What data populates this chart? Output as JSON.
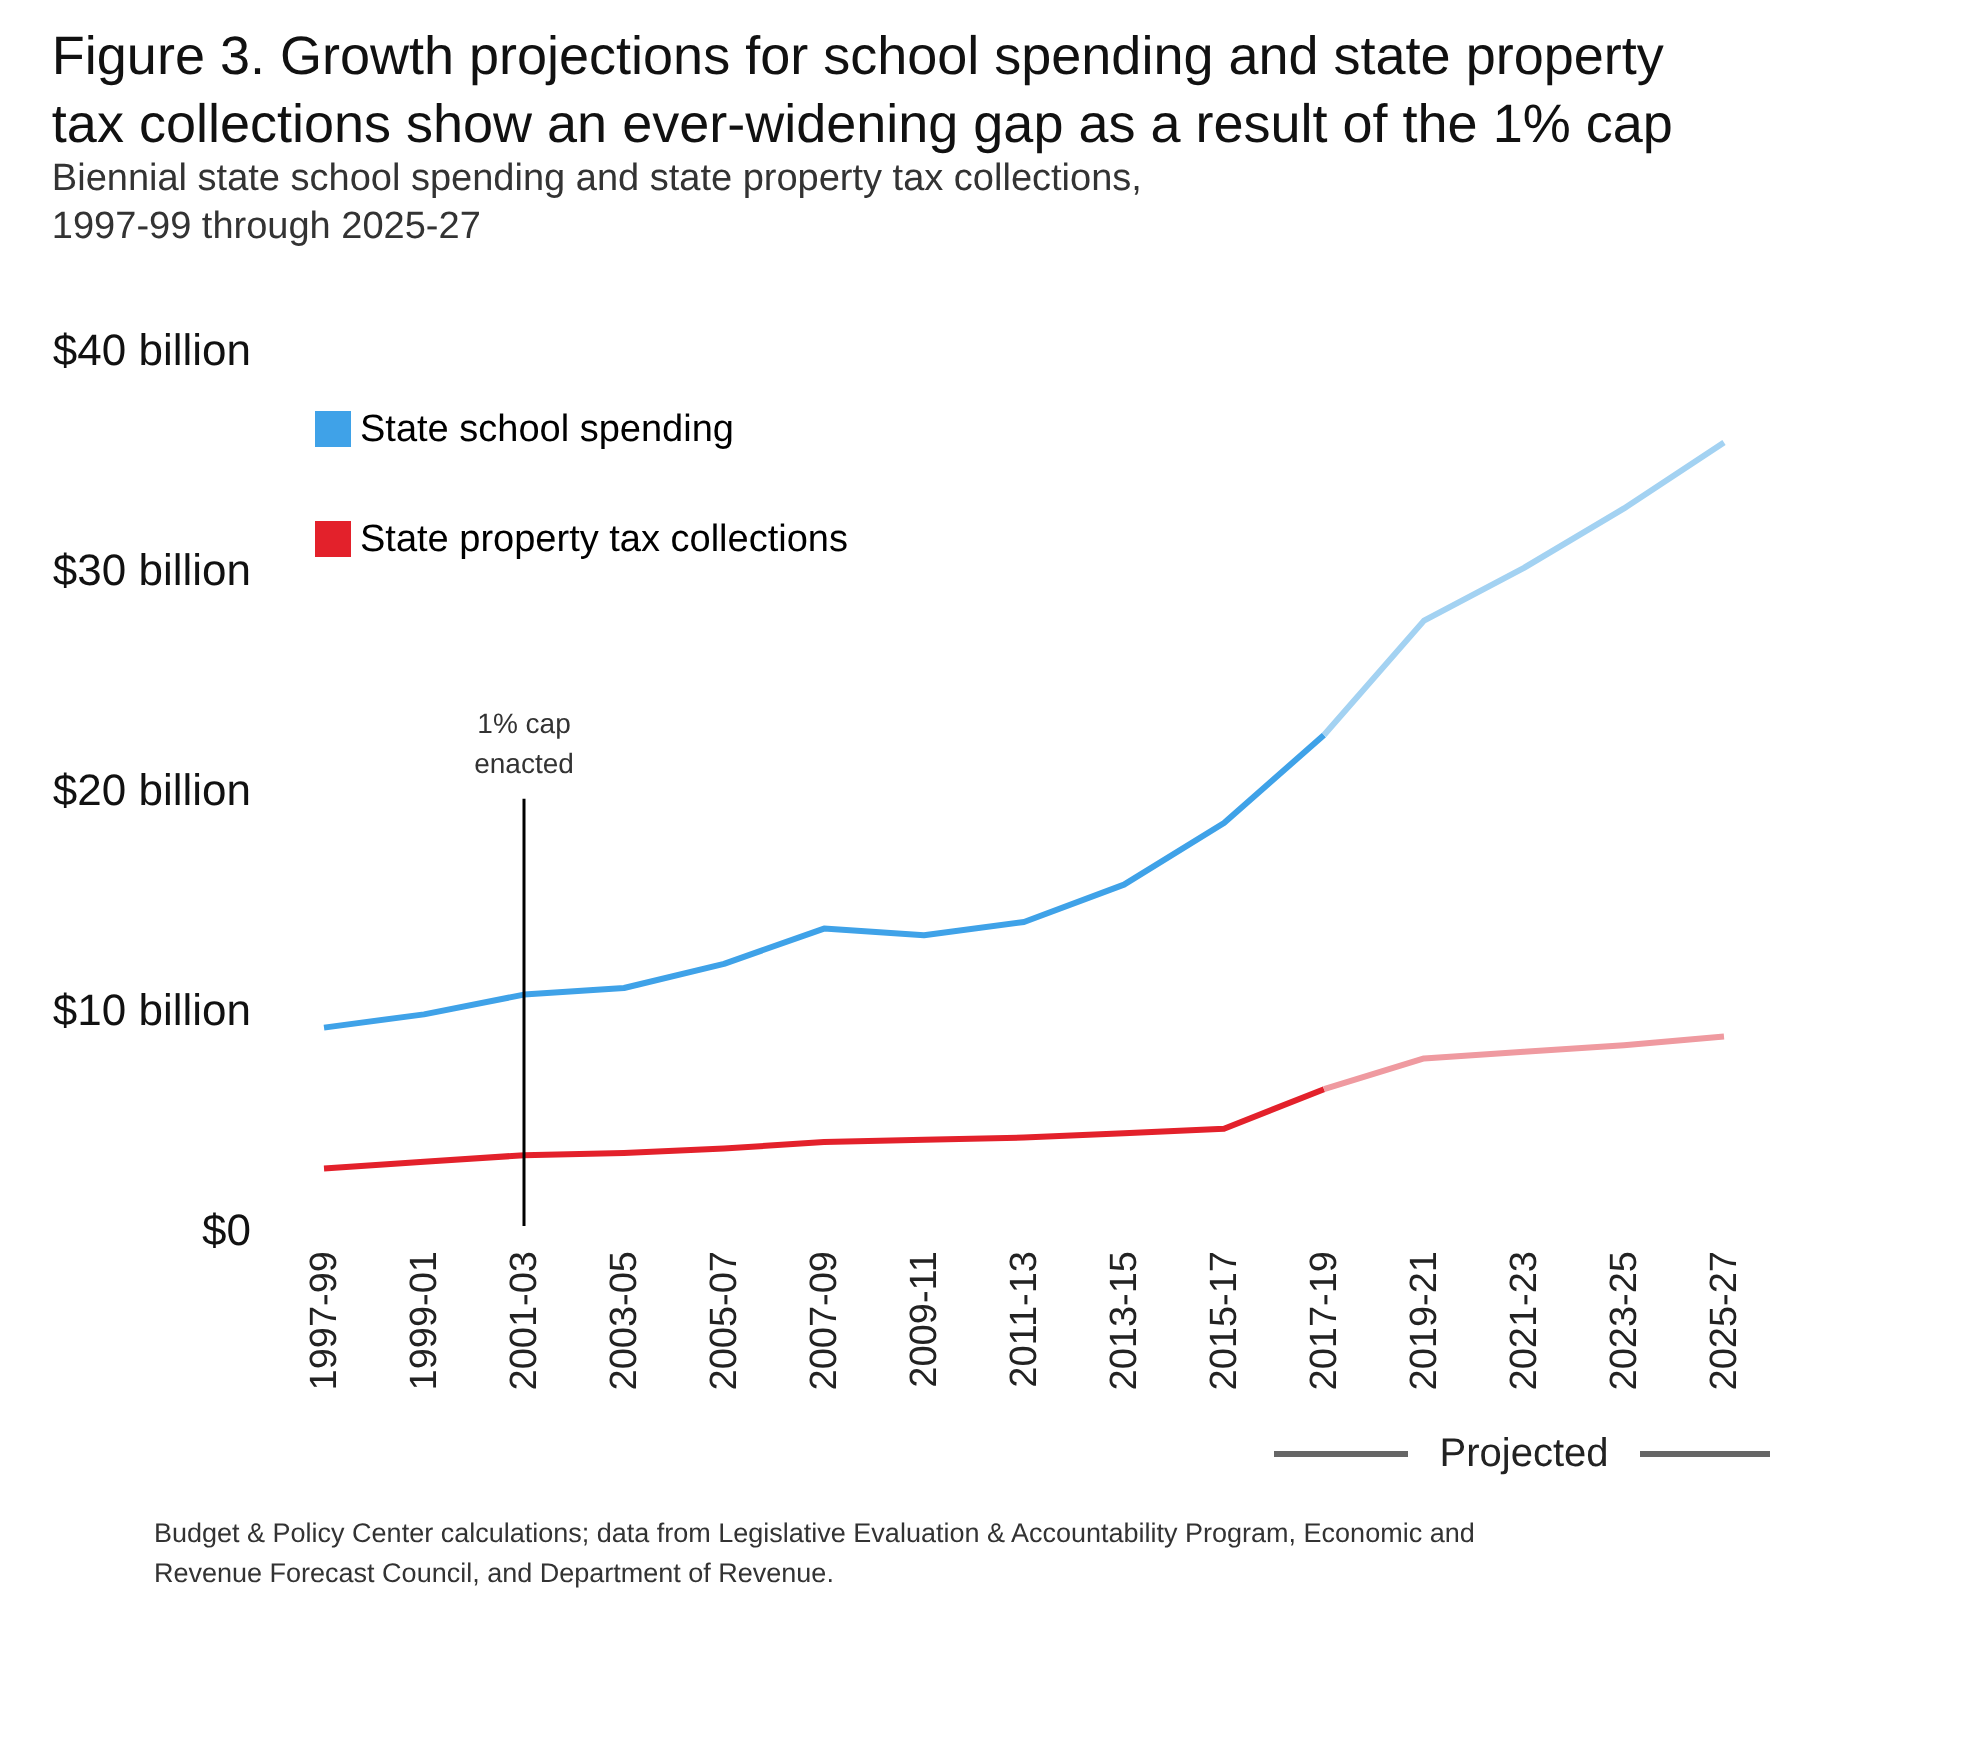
{
  "chart_data": {
    "type": "line",
    "title": "Figure 3. Growth projections for school spending and state property tax collections show an ever-widening gap as a result of the 1% cap",
    "subtitle": "Biennial state school spending and state property tax collections, 1997-99 through 2025-27",
    "categories": [
      "1997-99",
      "1999-01",
      "2001-03",
      "2003-05",
      "2005-07",
      "2007-09",
      "2009-11",
      "2011-13",
      "2013-15",
      "2015-17",
      "2017-19",
      "2019-21",
      "2021-23",
      "2023-25",
      "2025-27"
    ],
    "series": [
      {
        "name": "State school spending",
        "color": "#3fa2e8",
        "values": [
          9.2,
          9.8,
          10.7,
          11.0,
          12.1,
          13.7,
          13.4,
          14.0,
          15.7,
          18.5,
          22.5,
          null,
          null,
          null,
          null
        ]
      },
      {
        "color": "#a3d2f2",
        "values": [
          null,
          null,
          null,
          null,
          null,
          null,
          null,
          null,
          null,
          null,
          22.5,
          27.7,
          30.1,
          32.8,
          35.8
        ]
      },
      {
        "name": "State property tax collections",
        "color": "#e3212b",
        "values": [
          2.8,
          3.1,
          3.4,
          3.5,
          3.7,
          4.0,
          4.1,
          4.2,
          4.4,
          4.6,
          6.4,
          null,
          null,
          null,
          null
        ]
      },
      {
        "color": "#ef9aa0",
        "values": [
          null,
          null,
          null,
          null,
          null,
          null,
          null,
          null,
          null,
          null,
          6.4,
          7.8,
          8.1,
          8.4,
          8.8
        ]
      }
    ],
    "ylim": [
      0,
      40
    ],
    "yticks": [
      {
        "value": 0,
        "label": "$0"
      },
      {
        "value": 10,
        "label": "$10 billion"
      },
      {
        "value": 20,
        "label": "$20 billion"
      },
      {
        "value": 30,
        "label": "$30 billion"
      },
      {
        "value": 40,
        "label": "$40 billion"
      }
    ],
    "ref_lines": [
      {
        "axis": "x",
        "value": "2001-03",
        "label": "1% cap enacted",
        "color": "#000000"
      }
    ],
    "annotations": [
      "Projected",
      "Budget & Policy Center calculations; data from Legislative Evaluation & Accountability Program, Economic and Revenue Forecast Council, and Department of Revenue."
    ],
    "legend": "top left",
    "grid": false,
    "marker": "none",
    "line_style": "solid"
  }
}
